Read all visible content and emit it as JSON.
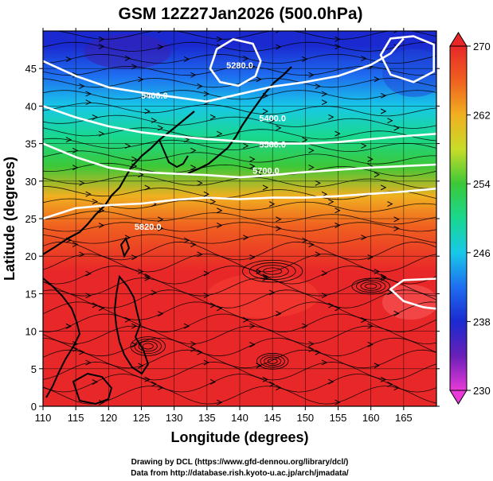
{
  "title": "GSM 12Z27Jan2026 (500.0hPa)",
  "credits": {
    "line1": "Drawing by DCL (https://www.gfd-dennou.org/library/dcl/)",
    "line2": "Data from http://database.rish.kyoto-u.ac.jp/arch/jmadata/"
  },
  "colors": {
    "frame": "#000000",
    "contour": "#ffffff",
    "streamline": "#000000",
    "coast": "#000000"
  },
  "chart_data": {
    "type": "heatmap",
    "title": "GSM 12Z27Jan2026 (500.0hPa)",
    "xlabel": "Longitude (degrees)",
    "ylabel": "Latitude  (degrees)",
    "xlim": [
      110,
      170
    ],
    "ylim": [
      0,
      50
    ],
    "xticks": [
      110,
      115,
      120,
      125,
      130,
      135,
      140,
      145,
      150,
      155,
      160,
      165
    ],
    "xtick_labels": [
      "110",
      "115",
      "120",
      "125",
      "130",
      "135",
      "140",
      "145",
      "150",
      "155",
      "160",
      "165"
    ],
    "yticks": [
      0,
      5,
      10,
      15,
      20,
      25,
      30,
      35,
      40,
      45
    ],
    "ytick_labels": [
      "0",
      "5",
      "10",
      "15",
      "20",
      "25",
      "30",
      "35",
      "40",
      "45"
    ],
    "grid": true,
    "colorbar": {
      "range": [
        230,
        270
      ],
      "ticks": [
        230,
        238,
        246,
        254,
        262,
        270
      ],
      "tick_labels": [
        "230",
        "238",
        "246",
        "254",
        "262",
        "270"
      ],
      "stops": [
        {
          "value": 230,
          "color": "#e83ad8"
        },
        {
          "value": 234,
          "color": "#6a1fb8"
        },
        {
          "value": 238,
          "color": "#1a2ad0"
        },
        {
          "value": 242,
          "color": "#1e6ef0"
        },
        {
          "value": 246,
          "color": "#18c8e8"
        },
        {
          "value": 250,
          "color": "#18d890"
        },
        {
          "value": 254,
          "color": "#3cc838"
        },
        {
          "value": 258,
          "color": "#c8dc28"
        },
        {
          "value": 262,
          "color": "#f0b020"
        },
        {
          "value": 266,
          "color": "#f06020"
        },
        {
          "value": 270,
          "color": "#e82828"
        }
      ]
    },
    "field_samples": [
      {
        "lat": 48,
        "value": 237
      },
      {
        "lat": 44,
        "value": 240
      },
      {
        "lat": 40,
        "value": 244
      },
      {
        "lat": 36,
        "value": 249
      },
      {
        "lat": 32,
        "value": 254
      },
      {
        "lat": 28,
        "value": 260
      },
      {
        "lat": 24,
        "value": 265
      },
      {
        "lat": 18,
        "value": 268
      },
      {
        "lat": 10,
        "value": 268
      },
      {
        "lat": 2,
        "value": 269
      }
    ],
    "contour_labels": [
      {
        "text": "5280.0",
        "lon": 140,
        "lat": 45
      },
      {
        "text": "5400.0",
        "lon": 127,
        "lat": 41
      },
      {
        "text": "5400.0",
        "lon": 145,
        "lat": 38
      },
      {
        "text": "5580.0",
        "lon": 145,
        "lat": 34.5
      },
      {
        "text": "5700.0",
        "lon": 144,
        "lat": 31
      },
      {
        "text": "5820.0",
        "lon": 126,
        "lat": 23.5
      }
    ],
    "contours": [
      {
        "level": "5280.0",
        "closed": true,
        "points": [
          [
            135.5,
            45
          ],
          [
            136.5,
            47.6
          ],
          [
            139,
            48.9
          ],
          [
            142,
            48.3
          ],
          [
            143.2,
            46
          ],
          [
            142.4,
            44
          ],
          [
            139.8,
            42.7
          ],
          [
            137,
            43.2
          ],
          [
            135.5,
            45
          ]
        ]
      },
      {
        "level": "5400.0",
        "closed": false,
        "points": [
          [
            110,
            46
          ],
          [
            115,
            44
          ],
          [
            120,
            42.5
          ],
          [
            125,
            41.8
          ],
          [
            130,
            41.2
          ],
          [
            135,
            40.6
          ],
          [
            140,
            41.6
          ],
          [
            145,
            42.6
          ],
          [
            150,
            43.2
          ],
          [
            155,
            44
          ],
          [
            160,
            45.5
          ],
          [
            163,
            47
          ],
          [
            165,
            49
          ]
        ]
      },
      {
        "level": "5580.0",
        "closed": false,
        "points": [
          [
            110,
            40
          ],
          [
            115,
            38.5
          ],
          [
            120,
            37.3
          ],
          [
            125,
            36.5
          ],
          [
            130,
            36
          ],
          [
            135,
            35.6
          ],
          [
            140,
            35.3
          ],
          [
            145,
            35
          ],
          [
            150,
            35
          ],
          [
            155,
            35.2
          ],
          [
            160,
            35.6
          ],
          [
            165,
            36
          ],
          [
            170,
            36.3
          ]
        ]
      },
      {
        "level": "5700.0",
        "closed": false,
        "points": [
          [
            110,
            35
          ],
          [
            115,
            33.2
          ],
          [
            120,
            31.8
          ],
          [
            125,
            31.2
          ],
          [
            130,
            31
          ],
          [
            135,
            30.8
          ],
          [
            140,
            30.5
          ],
          [
            145,
            30.8
          ],
          [
            150,
            31.2
          ],
          [
            155,
            31.5
          ],
          [
            160,
            31.8
          ],
          [
            165,
            32
          ],
          [
            170,
            32.2
          ]
        ]
      },
      {
        "level": "5820.0",
        "closed": false,
        "points": [
          [
            110,
            25
          ],
          [
            115,
            26.4
          ],
          [
            120,
            26.8
          ],
          [
            125,
            27
          ],
          [
            130,
            27.5
          ],
          [
            135,
            27.8
          ],
          [
            140,
            27.6
          ],
          [
            145,
            27.8
          ],
          [
            150,
            27.8
          ],
          [
            155,
            28
          ],
          [
            160,
            28.3
          ],
          [
            165,
            28.6
          ],
          [
            170,
            29
          ]
        ]
      },
      {
        "level": "5880.0",
        "closed": false,
        "points": [
          [
            170,
            17
          ],
          [
            165,
            16.8
          ],
          [
            163,
            15.6
          ],
          [
            165,
            14
          ],
          [
            168,
            13.2
          ],
          [
            170,
            13
          ]
        ]
      },
      {
        "level": "5400.0",
        "closed": true,
        "points": [
          [
            161.5,
            46.8
          ],
          [
            163,
            44.2
          ],
          [
            166.5,
            43.2
          ],
          [
            169.6,
            44.6
          ],
          [
            169.6,
            48.2
          ],
          [
            166.5,
            49.3
          ],
          [
            163,
            49
          ],
          [
            161.5,
            46.8
          ]
        ]
      }
    ],
    "streamline_flow": "predominantly westerly (left-to-right) with anticyclonic eddies near 18N 145E and 8N 125E"
  }
}
